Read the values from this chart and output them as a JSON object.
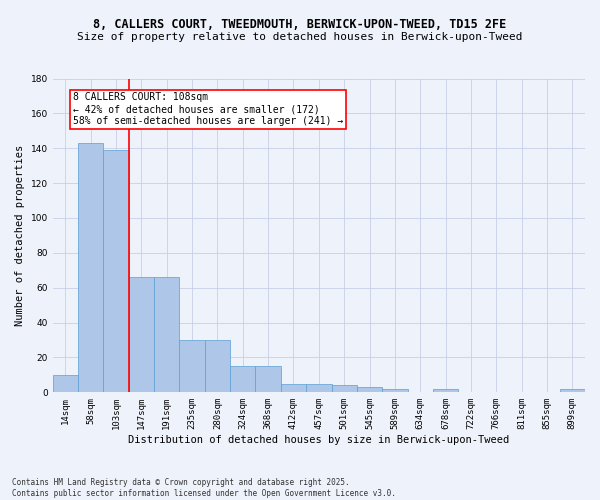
{
  "title_line1": "8, CALLERS COURT, TWEEDMOUTH, BERWICK-UPON-TWEED, TD15 2FE",
  "title_line2": "Size of property relative to detached houses in Berwick-upon-Tweed",
  "xlabel": "Distribution of detached houses by size in Berwick-upon-Tweed",
  "ylabel": "Number of detached properties",
  "categories": [
    "14sqm",
    "58sqm",
    "103sqm",
    "147sqm",
    "191sqm",
    "235sqm",
    "280sqm",
    "324sqm",
    "368sqm",
    "412sqm",
    "457sqm",
    "501sqm",
    "545sqm",
    "589sqm",
    "634sqm",
    "678sqm",
    "722sqm",
    "766sqm",
    "811sqm",
    "855sqm",
    "899sqm"
  ],
  "values": [
    10,
    143,
    139,
    66,
    66,
    30,
    30,
    15,
    15,
    5,
    5,
    4,
    3,
    2,
    0,
    2,
    0,
    0,
    0,
    0,
    2
  ],
  "bar_color": "#aec6e8",
  "bar_edge_color": "#5a9fd4",
  "vline_x": 2.5,
  "vline_color": "red",
  "annotation_text": "8 CALLERS COURT: 108sqm\n← 42% of detached houses are smaller (172)\n58% of semi-detached houses are larger (241) →",
  "annotation_box_color": "white",
  "annotation_box_edge": "red",
  "ylim": [
    0,
    180
  ],
  "yticks": [
    0,
    20,
    40,
    60,
    80,
    100,
    120,
    140,
    160,
    180
  ],
  "footer": "Contains HM Land Registry data © Crown copyright and database right 2025.\nContains public sector information licensed under the Open Government Licence v3.0.",
  "bg_color": "#eef2fb",
  "grid_color": "#c8d0e8",
  "title_fontsize": 8.5,
  "subtitle_fontsize": 8.0,
  "ylabel_fontsize": 7.5,
  "xlabel_fontsize": 7.5,
  "tick_fontsize": 6.5,
  "annotation_fontsize": 7.0,
  "footer_fontsize": 5.5
}
